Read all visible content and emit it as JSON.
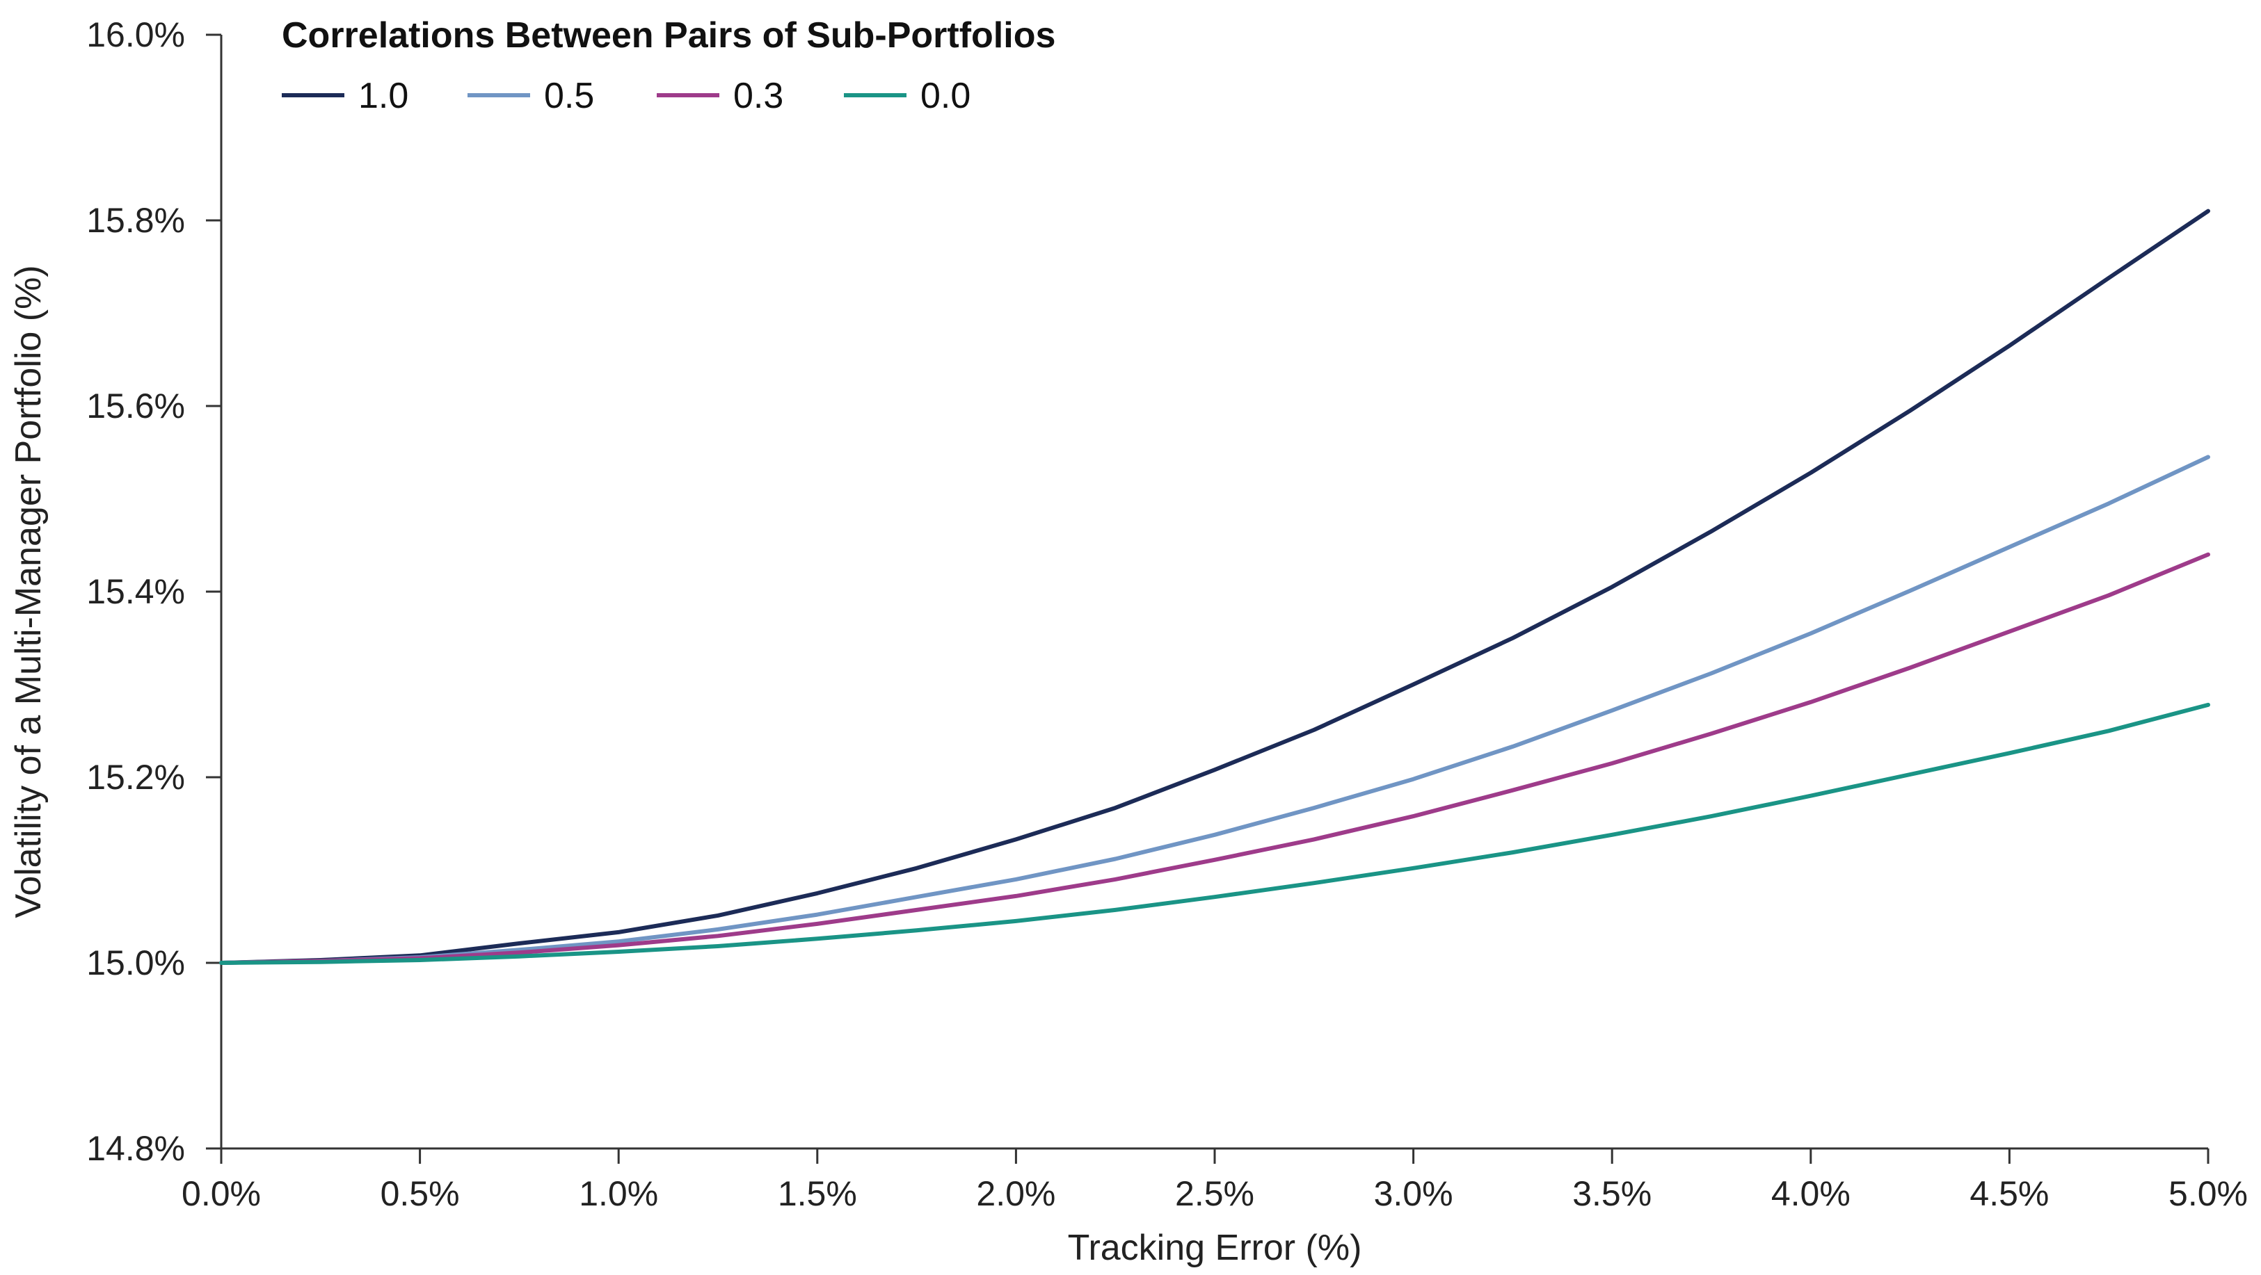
{
  "chart_data": {
    "type": "line",
    "title": "",
    "xlabel": "Tracking Error (%)",
    "ylabel": "Volatility of a Multi-Manager Portfolio (%)",
    "xlim": [
      0.0,
      5.0
    ],
    "ylim": [
      14.8,
      16.0
    ],
    "x_ticks": [
      0.0,
      0.5,
      1.0,
      1.5,
      2.0,
      2.5,
      3.0,
      3.5,
      4.0,
      4.5,
      5.0
    ],
    "x_tick_labels": [
      "0.0%",
      "0.5%",
      "1.0%",
      "1.5%",
      "2.0%",
      "2.5%",
      "3.0%",
      "3.5%",
      "4.0%",
      "4.5%",
      "5.0%"
    ],
    "y_ticks": [
      14.8,
      15.0,
      15.2,
      15.4,
      15.6,
      15.8,
      16.0
    ],
    "y_tick_labels": [
      "14.8%",
      "15.0%",
      "15.2%",
      "15.4%",
      "15.6%",
      "15.8%",
      "16.0%"
    ],
    "grid": false,
    "legend": {
      "title": "Correlations Between Pairs of Sub-Portfolios",
      "placement": "top-left"
    },
    "x": [
      0.0,
      0.25,
      0.5,
      0.75,
      1.0,
      1.25,
      1.5,
      1.75,
      2.0,
      2.25,
      2.5,
      2.75,
      3.0,
      3.25,
      3.5,
      3.75,
      4.0,
      4.25,
      4.5,
      4.75,
      5.0
    ],
    "series": [
      {
        "name": "1.0",
        "color": "#1c2b57",
        "values": [
          15.0,
          15.003,
          15.008,
          15.021,
          15.033,
          15.051,
          15.075,
          15.102,
          15.133,
          15.167,
          15.208,
          15.251,
          15.3,
          15.35,
          15.405,
          15.465,
          15.528,
          15.595,
          15.665,
          15.738,
          15.81
        ]
      },
      {
        "name": "0.5",
        "color": "#7095c4",
        "values": [
          15.0,
          15.002,
          15.006,
          15.014,
          15.023,
          15.036,
          15.052,
          15.071,
          15.09,
          15.112,
          15.138,
          15.167,
          15.198,
          15.233,
          15.272,
          15.312,
          15.355,
          15.401,
          15.448,
          15.495,
          15.545
        ]
      },
      {
        "name": "0.3",
        "color": "#9e3b8a",
        "values": [
          15.0,
          15.002,
          15.005,
          15.011,
          15.019,
          15.029,
          15.042,
          15.057,
          15.072,
          15.09,
          15.111,
          15.133,
          15.158,
          15.186,
          15.215,
          15.247,
          15.281,
          15.318,
          15.357,
          15.396,
          15.44
        ]
      },
      {
        "name": "0.0",
        "color": "#1a9486",
        "values": [
          15.0,
          15.001,
          15.003,
          15.007,
          15.012,
          15.018,
          15.026,
          15.035,
          15.045,
          15.057,
          15.071,
          15.086,
          15.102,
          15.119,
          15.138,
          15.158,
          15.18,
          15.203,
          15.226,
          15.25,
          15.278
        ]
      }
    ]
  }
}
